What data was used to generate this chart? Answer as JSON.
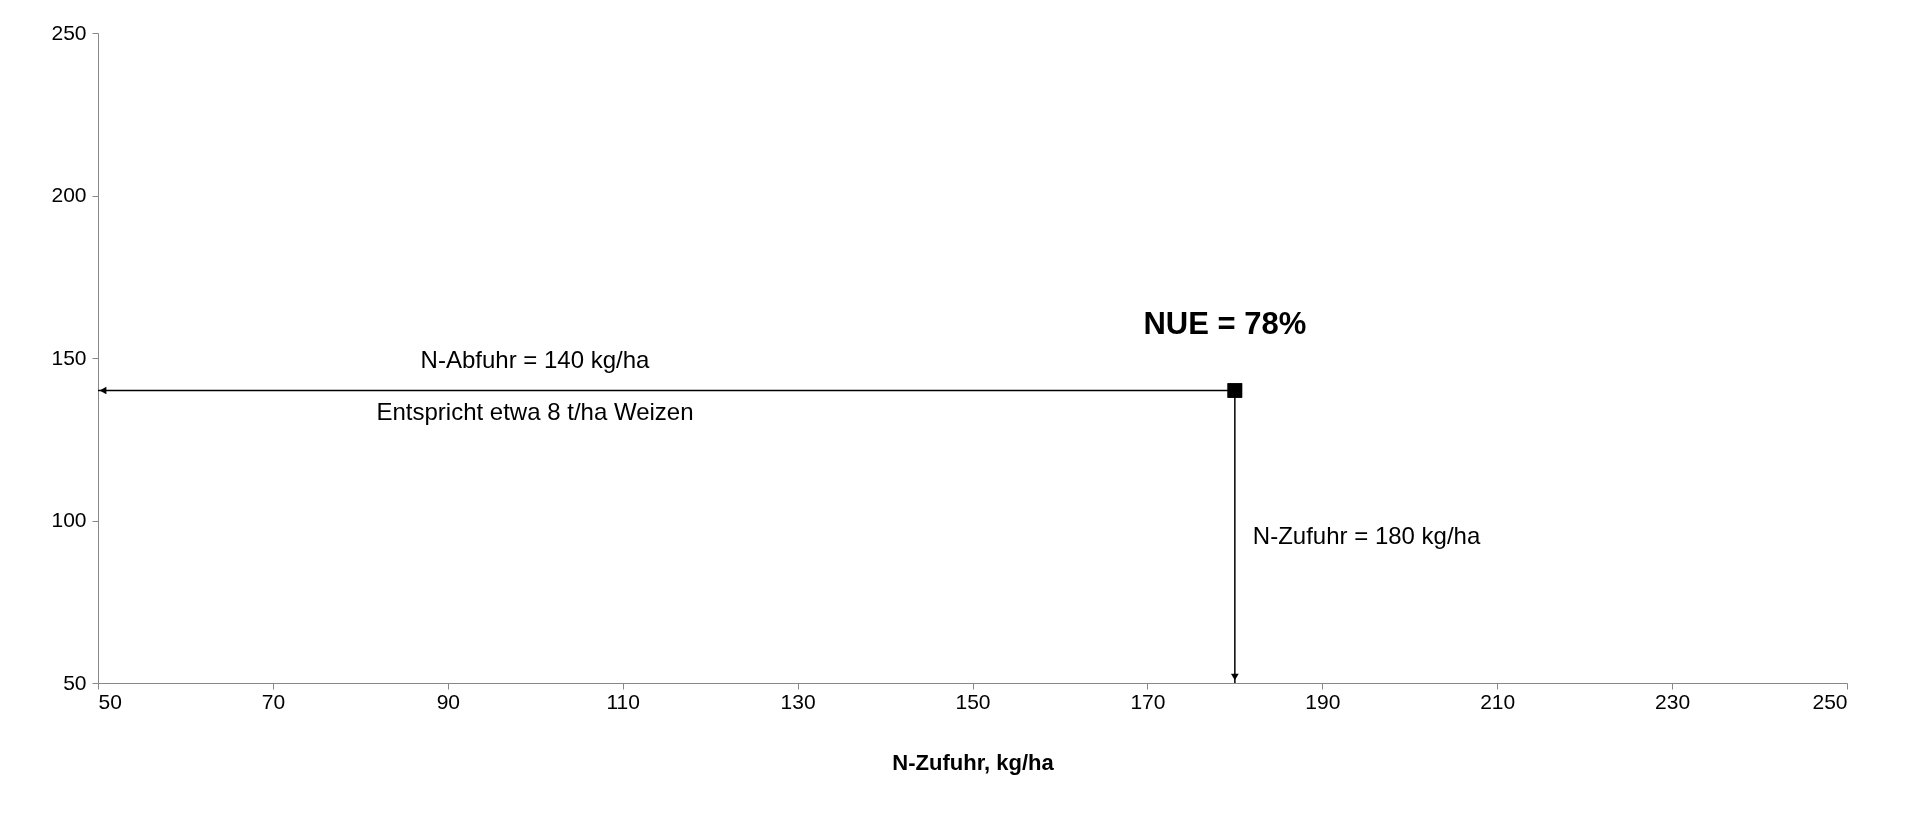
{
  "chart_data": {
    "type": "scatter",
    "xlabel": "N-Zufuhr, kg/ha",
    "x": [
      180
    ],
    "series": [
      {
        "color": "#000000",
        "values": [
          140
        ]
      }
    ],
    "marker": "square",
    "grid": false,
    "xlim": [
      50,
      250
    ],
    "xticks": [
      50,
      70,
      90,
      110,
      130,
      150,
      170,
      190,
      210,
      230,
      250
    ],
    "ylim": [
      50,
      250
    ],
    "yticks": [
      50,
      100,
      150,
      200,
      250
    ],
    "annotations": [
      "N-Abfuhr = 140 kg/ha",
      "Entspricht etwa 8 t/ha Weizen",
      "NUE = 78%",
      "N-Zufuhr = 180 kg/ha"
    ]
  }
}
